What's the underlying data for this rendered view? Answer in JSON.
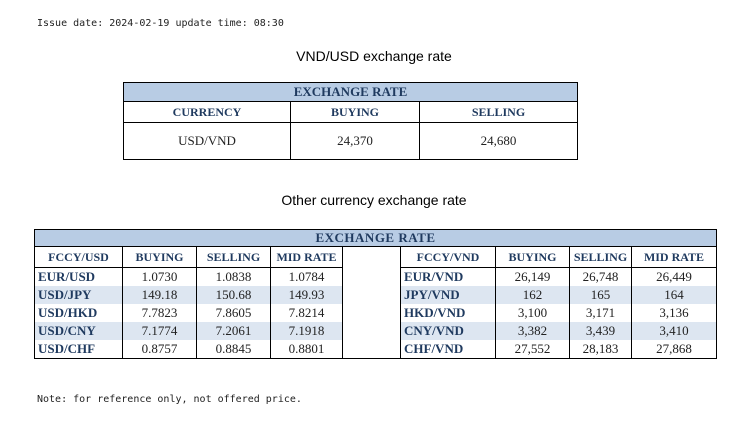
{
  "issue_line": "Issue date: 2024-02-19 update time: 08:30",
  "heading_main": "VND/USD exchange rate",
  "main_table": {
    "title": "EXCHANGE RATE",
    "headers": [
      "CURRENCY",
      "BUYING",
      "SELLING"
    ],
    "row": [
      "USD/VND",
      "24,370",
      "24,680"
    ]
  },
  "heading_other": "Other currency exchange rate",
  "other_table": {
    "title": "EXCHANGE  RATE",
    "left_headers": [
      "FCCY/USD",
      "BUYING",
      "SELLING",
      "MID RATE"
    ],
    "right_headers": [
      "FCCY/VND",
      "BUYING",
      "SELLING",
      "MID RATE"
    ],
    "rows": [
      {
        "l": [
          "EUR/USD",
          "1.0730",
          "1.0838",
          "1.0784"
        ],
        "r": [
          "EUR/VND",
          "26,149",
          "26,748",
          "26,449"
        ]
      },
      {
        "l": [
          "USD/JPY",
          "149.18",
          "150.68",
          "149.93"
        ],
        "r": [
          "JPY/VND",
          "162",
          "165",
          "164"
        ]
      },
      {
        "l": [
          "USD/HKD",
          "7.7823",
          "7.8605",
          "7.8214"
        ],
        "r": [
          "HKD/VND",
          "3,100",
          "3,171",
          "3,136"
        ]
      },
      {
        "l": [
          "USD/CNY",
          "7.1774",
          "7.2061",
          "7.1918"
        ],
        "r": [
          "CNY/VND",
          "3,382",
          "3,439",
          "3,410"
        ]
      },
      {
        "l": [
          "USD/CHF",
          "0.8757",
          "0.8845",
          "0.8801"
        ],
        "r": [
          "CHF/VND",
          "27,552",
          "28,183",
          "27,868"
        ]
      }
    ]
  },
  "note": "Note: for reference only, not offered price."
}
